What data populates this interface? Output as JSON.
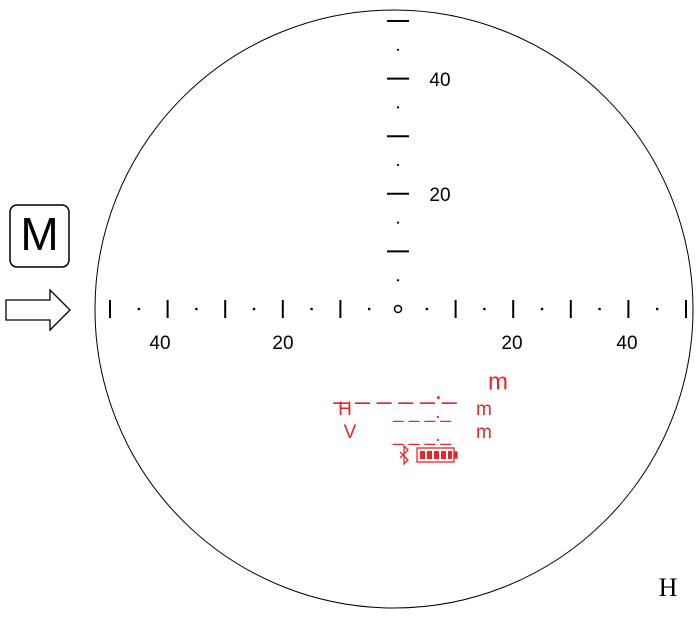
{
  "mode_button": "M",
  "vertical_scale": {
    "labels": [
      "40",
      "20"
    ]
  },
  "horizontal_scale": {
    "labels": [
      "40",
      "20",
      "20",
      "40"
    ]
  },
  "display": {
    "distance": "_ _ _ _ _._",
    "distance_unit": "m",
    "height_label": "H",
    "height_value": "_ _ _._",
    "height_unit": "m",
    "vertical_label": "V",
    "vertical_value": "_ _ _._",
    "vertical_unit": "m"
  },
  "footer_text": "H"
}
